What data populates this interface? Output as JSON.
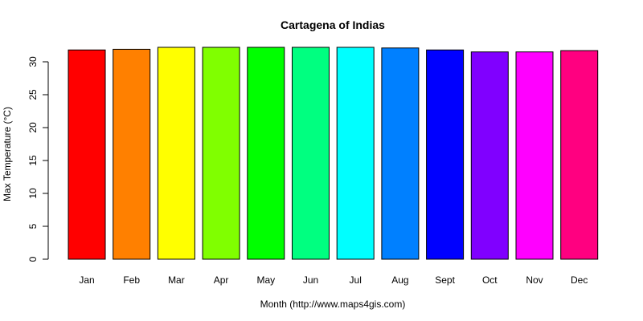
{
  "chart_data": {
    "type": "bar",
    "title": "Cartagena of Indias",
    "xlabel": "Month (http://www.maps4gis.com)",
    "ylabel": "Max Temperature (°C)",
    "categories": [
      "Jan",
      "Feb",
      "Mar",
      "Apr",
      "May",
      "Jun",
      "Jul",
      "Aug",
      "Sept",
      "Oct",
      "Nov",
      "Dec"
    ],
    "values": [
      31.8,
      31.9,
      32.2,
      32.2,
      32.2,
      32.2,
      32.2,
      32.1,
      31.8,
      31.5,
      31.5,
      31.7
    ],
    "colors": [
      "#FF0000",
      "#FF8000",
      "#FFFF00",
      "#80FF00",
      "#00FF00",
      "#00FF80",
      "#00FFFF",
      "#0080FF",
      "#0000FF",
      "#8000FF",
      "#FF00FF",
      "#FF0080"
    ],
    "ylim": [
      0,
      32.2
    ],
    "yticks": [
      0,
      5,
      10,
      15,
      20,
      25,
      30
    ],
    "grid": false,
    "legend": "none"
  }
}
